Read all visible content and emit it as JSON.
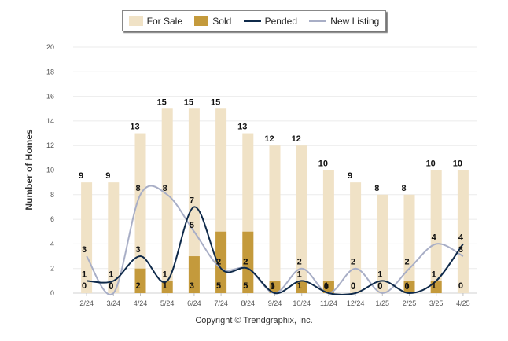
{
  "chart_data": {
    "type": "bar",
    "categories": [
      "2/24",
      "3/24",
      "4/24",
      "5/24",
      "6/24",
      "7/24",
      "8/24",
      "9/24",
      "10/24",
      "11/24",
      "12/24",
      "1/25",
      "2/25",
      "3/25",
      "4/25"
    ],
    "ylabel": "Number of Homes",
    "ylim": [
      0,
      20
    ],
    "yticks": [
      0,
      2,
      4,
      6,
      8,
      10,
      12,
      14,
      16,
      18,
      20
    ],
    "grid": true,
    "legend_position": "top",
    "series": [
      {
        "name": "For Sale",
        "kind": "bar",
        "color": "#f0e2c6",
        "values": [
          9,
          9,
          13,
          15,
          15,
          15,
          13,
          12,
          12,
          10,
          9,
          8,
          8,
          10,
          10
        ]
      },
      {
        "name": "Sold",
        "kind": "bar",
        "color": "#c49a3c",
        "values": [
          0,
          0,
          2,
          1,
          3,
          5,
          5,
          1,
          1,
          1,
          0,
          0,
          1,
          1,
          0
        ]
      },
      {
        "name": "Pended",
        "kind": "line",
        "color": "#0f2a4a",
        "values": [
          1,
          1,
          3,
          1,
          7,
          2,
          2,
          0,
          1,
          0,
          0,
          1,
          0,
          1,
          4
        ]
      },
      {
        "name": "New Listing",
        "kind": "line",
        "color": "#a8aec6",
        "values": [
          3,
          0,
          8,
          8,
          5,
          2,
          2,
          0,
          2,
          0,
          2,
          0,
          2,
          4,
          3
        ]
      }
    ]
  },
  "copyright": "Copyright © Trendgraphix, Inc."
}
